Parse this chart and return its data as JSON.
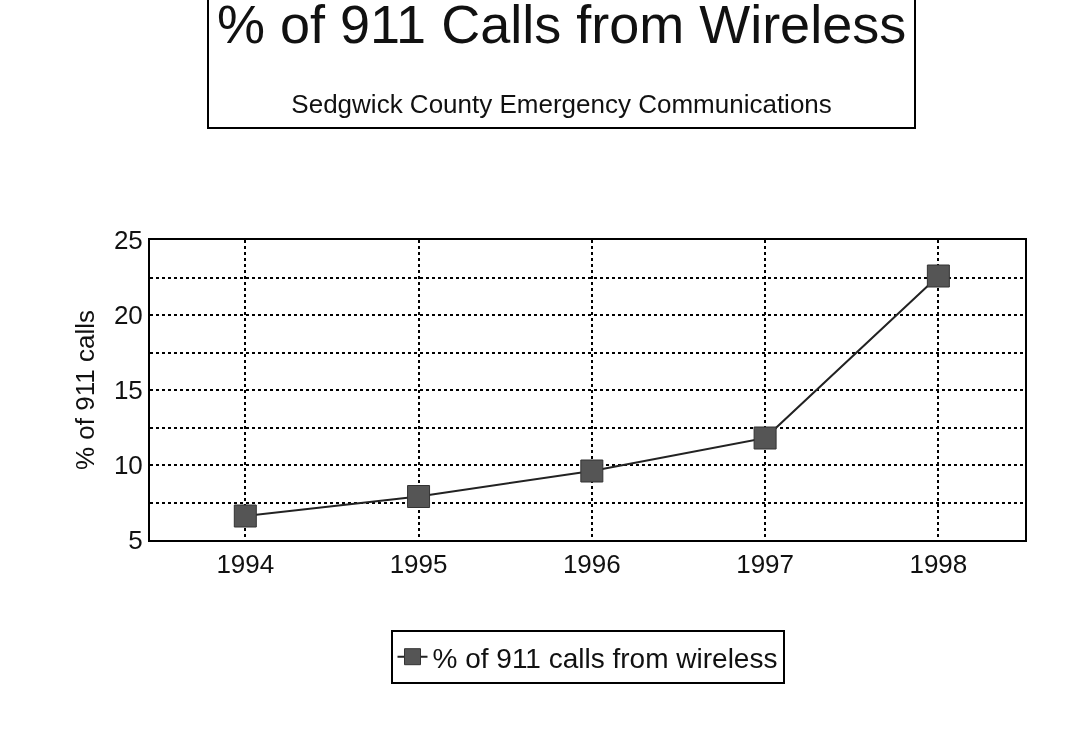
{
  "chart_data": {
    "type": "line",
    "title": "% of 911 Calls from Wireless",
    "subtitle": "Sedgwick County Emergency Communications",
    "ylabel": "% of 911 calls",
    "categories": [
      "1994",
      "1995",
      "1996",
      "1997",
      "1998"
    ],
    "series": [
      {
        "name": "% of 911 calls from wireless",
        "color": "#555555",
        "values": [
          6.6,
          7.9,
          9.6,
          11.8,
          22.6
        ]
      }
    ],
    "ylim": [
      5,
      25
    ],
    "yticks": [
      5,
      {
        "value": 7.5,
        "label": null
      },
      10,
      {
        "value": 12.5,
        "label": null
      },
      15,
      {
        "value": 17.5,
        "label": null
      },
      20,
      {
        "value": 22.5,
        "label": null
      },
      25
    ],
    "grid": true,
    "legend": "bottom",
    "marker": "square",
    "line_style": "solid"
  }
}
